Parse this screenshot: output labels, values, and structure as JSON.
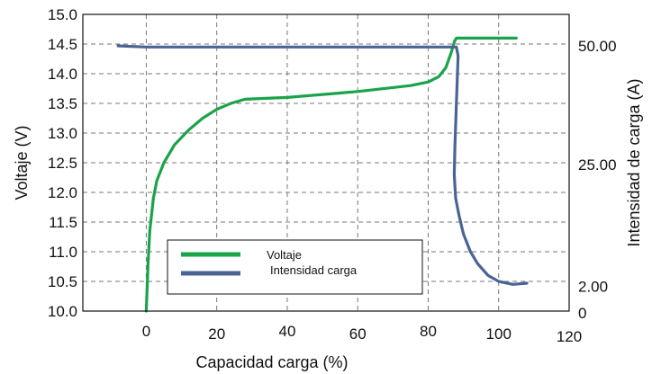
{
  "chart_data": {
    "type": "line",
    "xlabel": "Capacidad carga (%)",
    "ylabel": "Voltaje (V)",
    "y2label": "Intensidad de carga (A)",
    "xlim": [
      -18,
      120
    ],
    "ylim": [
      10.0,
      15.0
    ],
    "x_ticks": [
      "0",
      "20",
      "40",
      "60",
      "80",
      "100",
      "120"
    ],
    "y_ticks": [
      "10.0",
      "10.5",
      "11.0",
      "11.5",
      "12.0",
      "12.5",
      "13.0",
      "13.5",
      "14.0",
      "14.5",
      "15.0"
    ],
    "y2_ticks": [
      {
        "label": "50.00",
        "at_voltage": 14.5
      },
      {
        "label": "25.00",
        "at_voltage": 12.5
      },
      {
        "label": "2.00",
        "at_voltage": 10.45
      },
      {
        "label": "0",
        "at_voltage": 10.0
      }
    ],
    "grid": true,
    "legend_position": "bottom-left",
    "series": [
      {
        "name": "Voltaje",
        "color": "#1aa34a",
        "points": [
          [
            0,
            10.0
          ],
          [
            0.5,
            10.8
          ],
          [
            1,
            11.35
          ],
          [
            2,
            11.9
          ],
          [
            3,
            12.2
          ],
          [
            5,
            12.5
          ],
          [
            8,
            12.8
          ],
          [
            12,
            13.05
          ],
          [
            16,
            13.25
          ],
          [
            20,
            13.4
          ],
          [
            24,
            13.5
          ],
          [
            28,
            13.57
          ],
          [
            40,
            13.6
          ],
          [
            60,
            13.7
          ],
          [
            75,
            13.8
          ],
          [
            80,
            13.86
          ],
          [
            83,
            13.95
          ],
          [
            85,
            14.1
          ],
          [
            86.5,
            14.35
          ],
          [
            87.5,
            14.55
          ],
          [
            88,
            14.6
          ],
          [
            105,
            14.6
          ]
        ]
      },
      {
        "name": "Intensidad carga",
        "color": "#4a6494",
        "points": [
          [
            -8,
            14.47
          ],
          [
            0,
            14.45
          ],
          [
            40,
            14.45
          ],
          [
            80,
            14.45
          ],
          [
            88,
            14.45
          ],
          [
            88.5,
            14.3
          ],
          [
            88,
            13.5
          ],
          [
            87.6,
            12.8
          ],
          [
            87.4,
            12.3
          ],
          [
            87.8,
            11.9
          ],
          [
            88.8,
            11.6
          ],
          [
            90,
            11.3
          ],
          [
            92,
            11.0
          ],
          [
            94,
            10.8
          ],
          [
            97,
            10.6
          ],
          [
            100,
            10.5
          ],
          [
            104,
            10.45
          ],
          [
            108,
            10.47
          ]
        ]
      }
    ]
  }
}
